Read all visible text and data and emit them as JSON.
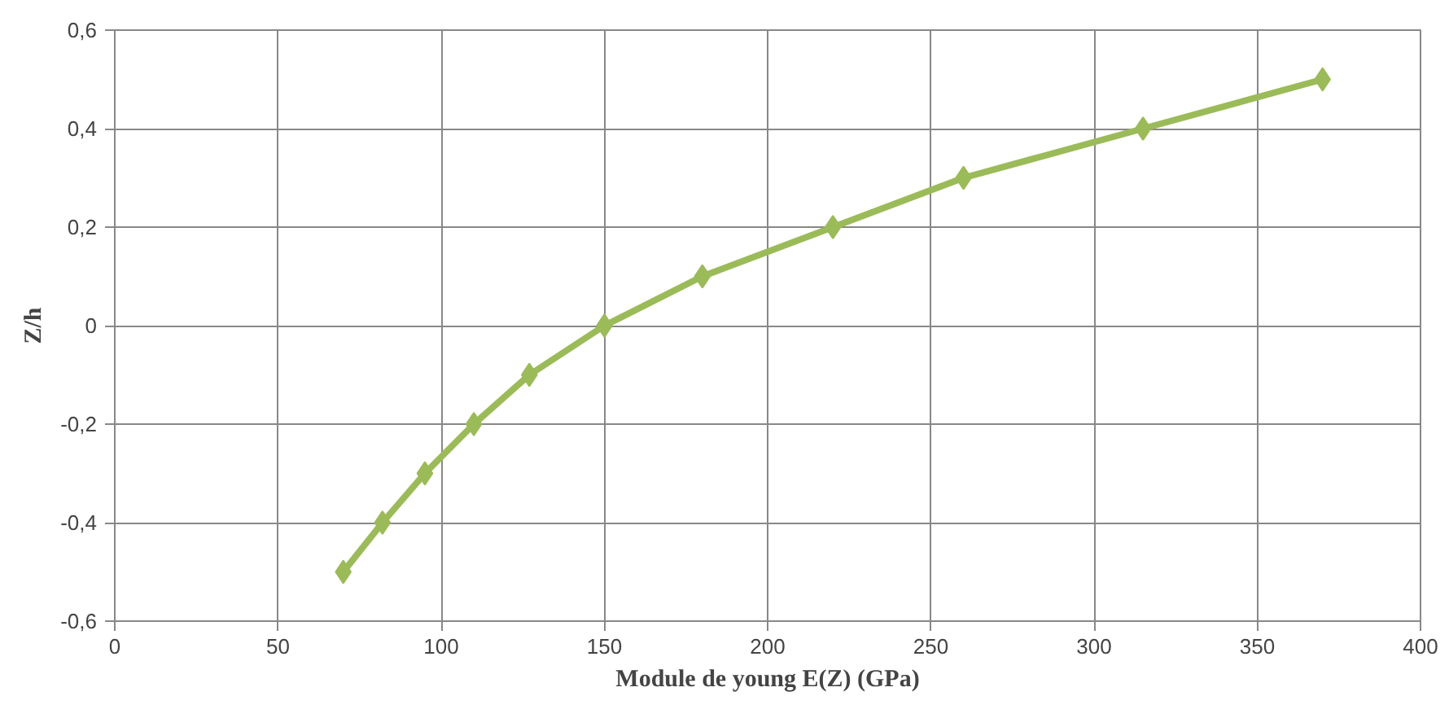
{
  "chart_data": {
    "type": "line",
    "xlabel": "Module de young E(Z) (GPa)",
    "ylabel": "Z/h",
    "x": [
      70,
      82,
      95,
      110,
      127,
      150,
      180,
      220,
      260,
      315,
      370
    ],
    "series": [
      {
        "color": "#9bbb59",
        "values": [
          -0.5,
          -0.4,
          -0.3,
          -0.2,
          -0.1,
          0,
          0.1,
          0.2,
          0.3,
          0.4,
          0.5
        ]
      }
    ],
    "xlim": [
      0,
      400
    ],
    "xticks": [
      0,
      50,
      100,
      150,
      200,
      250,
      300,
      350,
      400
    ],
    "ylim": [
      -0.6,
      0.6
    ],
    "yticks": [
      {
        "value": -0.6,
        "label": "-0,6"
      },
      {
        "value": -0.4,
        "label": "-0,4"
      },
      {
        "value": -0.2,
        "label": "-0,2"
      },
      0,
      {
        "value": 0.2,
        "label": "0,2"
      },
      {
        "value": 0.4,
        "label": "0,4"
      },
      {
        "value": 0.6,
        "label": "0,6"
      }
    ],
    "grid": true,
    "marker": "diamond",
    "line_style": "solid"
  }
}
